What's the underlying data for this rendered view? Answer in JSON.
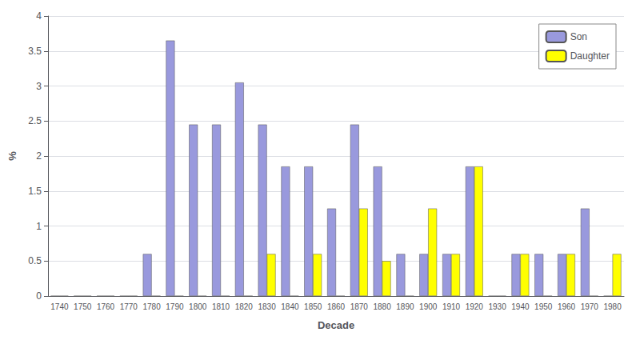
{
  "chart_data": {
    "type": "bar",
    "xlabel": "Decade",
    "ylabel": "%",
    "categories": [
      "1740",
      "1750",
      "1760",
      "1770",
      "1780",
      "1790",
      "1800",
      "1810",
      "1820",
      "1830",
      "1840",
      "1850",
      "1860",
      "1870",
      "1880",
      "1890",
      "1900",
      "1910",
      "1920",
      "1930",
      "1940",
      "1950",
      "1960",
      "1970",
      "1980"
    ],
    "series": [
      {
        "name": "Son",
        "color": "#9999dd",
        "values": [
          0,
          0,
          0,
          0,
          0.6,
          3.65,
          2.45,
          2.45,
          3.05,
          2.45,
          1.85,
          1.85,
          1.25,
          2.45,
          1.85,
          0.6,
          0.6,
          0.6,
          1.85,
          0,
          0.6,
          0.6,
          0.6,
          1.25,
          0
        ]
      },
      {
        "name": "Daughter",
        "color": "#ffff00",
        "values": [
          0,
          0,
          0,
          0,
          0,
          0,
          0,
          0,
          0,
          0.6,
          0,
          0.6,
          0,
          1.25,
          0.5,
          0,
          1.25,
          0.6,
          1.85,
          0,
          0.6,
          0,
          0.6,
          0,
          0.6
        ]
      }
    ],
    "ylim": [
      0,
      4
    ],
    "yticks": [
      0,
      0.5,
      1,
      1.5,
      2,
      2.5,
      3,
      3.5,
      4
    ],
    "grid": true,
    "legend": "upper right"
  }
}
